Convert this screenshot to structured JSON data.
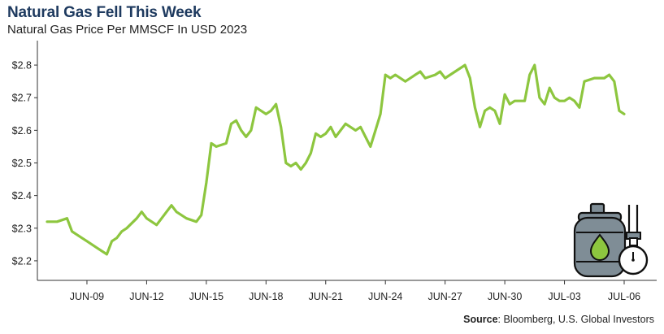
{
  "header": {
    "title": "Natural Gas Fell This Week",
    "subtitle": "Natural Gas Price Per MMSCF In USD 2023"
  },
  "footer": {
    "source_label": "Source",
    "source_text": ": Bloomberg, U.S. Global Investors"
  },
  "icon": {
    "name": "gas-cylinder-gauge-icon",
    "color_body": "#7f8d96",
    "color_drop": "#8dc63f"
  },
  "chart_data": {
    "type": "line",
    "title": "Natural Gas Fell This Week",
    "subtitle": "Natural Gas Price Per MMSCF In USD 2023",
    "xlabel": "",
    "ylabel": "",
    "ylim": [
      2.14,
      2.86
    ],
    "xlim": [
      "2023-06-07",
      "2023-07-06"
    ],
    "y_ticks": [
      "$2.2",
      "$2.3",
      "$2.4",
      "$2.5",
      "$2.6",
      "$2.7",
      "$2.8"
    ],
    "y_tick_values": [
      2.2,
      2.3,
      2.4,
      2.5,
      2.6,
      2.7,
      2.8
    ],
    "x_ticks": [
      "JUN-09",
      "JUN-12",
      "JUN-15",
      "JUN-18",
      "JUN-21",
      "JUN-24",
      "JUN-27",
      "JUN-30",
      "JUL-03",
      "JUL-06"
    ],
    "x_tick_dates": [
      "2023-06-09",
      "2023-06-12",
      "2023-06-15",
      "2023-06-18",
      "2023-06-21",
      "2023-06-24",
      "2023-06-27",
      "2023-06-30",
      "2023-07-03",
      "2023-07-06"
    ],
    "grid": false,
    "line_color": "#8dc63f",
    "series": [
      {
        "x": [
          "2023-06-07 00:00",
          "2023-06-07 12:00",
          "2023-06-08 00:00",
          "2023-06-08 06:00",
          "2023-06-08 12:00",
          "2023-06-08 18:00",
          "2023-06-09 00:00",
          "2023-06-09 12:00",
          "2023-06-10 00:00",
          "2023-06-10 06:00",
          "2023-06-10 12:00",
          "2023-06-10 18:00",
          "2023-06-11 00:00",
          "2023-06-11 12:00",
          "2023-06-11 18:00",
          "2023-06-12 00:00",
          "2023-06-12 12:00",
          "2023-06-13 00:00",
          "2023-06-13 06:00",
          "2023-06-13 12:00",
          "2023-06-14 00:00",
          "2023-06-14 12:00",
          "2023-06-14 18:00",
          "2023-06-15 00:00",
          "2023-06-15 06:00",
          "2023-06-15 12:00",
          "2023-06-16 00:00",
          "2023-06-16 06:00",
          "2023-06-16 12:00",
          "2023-06-16 18:00",
          "2023-06-17 00:00",
          "2023-06-17 06:00",
          "2023-06-17 12:00",
          "2023-06-18 00:00",
          "2023-06-18 06:00",
          "2023-06-18 12:00",
          "2023-06-18 18:00",
          "2023-06-19 00:00",
          "2023-06-19 06:00",
          "2023-06-19 12:00",
          "2023-06-19 18:00",
          "2023-06-20 00:00",
          "2023-06-20 06:00",
          "2023-06-20 12:00",
          "2023-06-20 18:00",
          "2023-06-21 00:00",
          "2023-06-21 06:00",
          "2023-06-21 12:00",
          "2023-06-22 00:00",
          "2023-06-22 12:00",
          "2023-06-22 18:00",
          "2023-06-23 00:00",
          "2023-06-23 06:00",
          "2023-06-23 12:00",
          "2023-06-23 18:00",
          "2023-06-24 00:00",
          "2023-06-24 06:00",
          "2023-06-24 12:00",
          "2023-06-25 00:00",
          "2023-06-25 12:00",
          "2023-06-25 18:00",
          "2023-06-26 00:00",
          "2023-06-26 12:00",
          "2023-06-26 18:00",
          "2023-06-27 00:00",
          "2023-06-27 12:00",
          "2023-06-28 00:00",
          "2023-06-28 06:00",
          "2023-06-28 12:00",
          "2023-06-28 18:00",
          "2023-06-29 00:00",
          "2023-06-29 06:00",
          "2023-06-29 12:00",
          "2023-06-29 18:00",
          "2023-06-30 00:00",
          "2023-06-30 06:00",
          "2023-06-30 12:00",
          "2023-07-01 00:00",
          "2023-07-01 06:00",
          "2023-07-01 12:00",
          "2023-07-01 18:00",
          "2023-07-02 00:00",
          "2023-07-02 06:00",
          "2023-07-02 12:00",
          "2023-07-02 18:00",
          "2023-07-03 00:00",
          "2023-07-03 06:00",
          "2023-07-03 12:00",
          "2023-07-03 18:00",
          "2023-07-04 00:00",
          "2023-07-04 12:00",
          "2023-07-05 00:00",
          "2023-07-05 06:00",
          "2023-07-05 12:00",
          "2023-07-05 18:00",
          "2023-07-06 00:00"
        ],
        "values": [
          2.32,
          2.32,
          2.33,
          2.29,
          2.28,
          2.27,
          2.26,
          2.24,
          2.22,
          2.26,
          2.27,
          2.29,
          2.3,
          2.33,
          2.35,
          2.33,
          2.31,
          2.35,
          2.37,
          2.35,
          2.33,
          2.32,
          2.34,
          2.44,
          2.56,
          2.55,
          2.56,
          2.62,
          2.63,
          2.6,
          2.58,
          2.6,
          2.67,
          2.65,
          2.66,
          2.68,
          2.61,
          2.5,
          2.49,
          2.5,
          2.48,
          2.5,
          2.53,
          2.59,
          2.58,
          2.59,
          2.61,
          2.58,
          2.62,
          2.6,
          2.61,
          2.58,
          2.55,
          2.6,
          2.65,
          2.77,
          2.76,
          2.77,
          2.75,
          2.77,
          2.78,
          2.76,
          2.77,
          2.78,
          2.76,
          2.78,
          2.8,
          2.76,
          2.67,
          2.61,
          2.66,
          2.67,
          2.66,
          2.62,
          2.71,
          2.68,
          2.69,
          2.69,
          2.77,
          2.8,
          2.7,
          2.68,
          2.73,
          2.7,
          2.69,
          2.69,
          2.7,
          2.69,
          2.67,
          2.75,
          2.76,
          2.76,
          2.77,
          2.75,
          2.66,
          2.65
        ]
      }
    ]
  }
}
